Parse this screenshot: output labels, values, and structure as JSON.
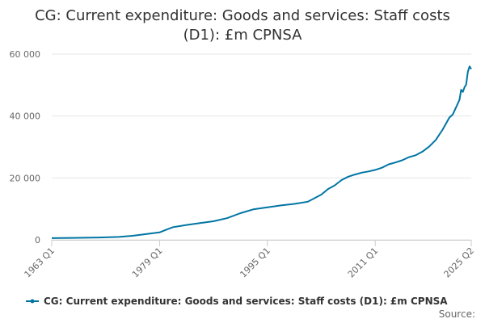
{
  "title_line1": "CG: Current expenditure: Goods and services: Staff costs",
  "title_line2": "(D1): £m CPNSA",
  "source_label": "Source:",
  "colors": {
    "series": "#0075a3",
    "grid": "#e6e6e6",
    "axis": "#cccccc"
  },
  "chart_data": {
    "type": "line",
    "title": "CG: Current expenditure: Goods and services: Staff costs (D1): £m CPNSA",
    "xlabel": "",
    "ylabel": "",
    "ylim": [
      0,
      60000
    ],
    "y_ticks": [
      0,
      20000,
      40000,
      60000
    ],
    "y_tick_labels": [
      "0",
      "20 000",
      "40 000",
      "60 000"
    ],
    "x_range": [
      "1963 Q1",
      "2025 Q2"
    ],
    "x_ticks": [
      "1963 Q1",
      "1979 Q1",
      "1995 Q1",
      "2011 Q1",
      "2025 Q2"
    ],
    "grid": true,
    "legend_position": "bottom",
    "series": [
      {
        "name": "CG: Current expenditure: Goods and services: Staff costs (D1): £m CPNSA",
        "color": "#0075a3",
        "points": [
          [
            "1963 Q1",
            550
          ],
          [
            "1966 Q1",
            620
          ],
          [
            "1970 Q1",
            760
          ],
          [
            "1973 Q1",
            950
          ],
          [
            "1975 Q1",
            1300
          ],
          [
            "1977 Q1",
            1850
          ],
          [
            "1979 Q1",
            2400
          ],
          [
            "1980 Q1",
            3300
          ],
          [
            "1981 Q1",
            4100
          ],
          [
            "1983 Q1",
            4800
          ],
          [
            "1985 Q1",
            5400
          ],
          [
            "1987 Q1",
            6000
          ],
          [
            "1989 Q1",
            7000
          ],
          [
            "1991 Q1",
            8600
          ],
          [
            "1993 Q1",
            9900
          ],
          [
            "1995 Q1",
            10500
          ],
          [
            "1997 Q1",
            11100
          ],
          [
            "1999 Q1",
            11600
          ],
          [
            "2001 Q1",
            12300
          ],
          [
            "2003 Q1",
            14600
          ],
          [
            "2004 Q1",
            16400
          ],
          [
            "2005 Q1",
            17600
          ],
          [
            "2006 Q1",
            19300
          ],
          [
            "2007 Q1",
            20400
          ],
          [
            "2008 Q1",
            21100
          ],
          [
            "2009 Q1",
            21700
          ],
          [
            "2010 Q1",
            22100
          ],
          [
            "2011 Q1",
            22600
          ],
          [
            "2012 Q1",
            23300
          ],
          [
            "2013 Q1",
            24400
          ],
          [
            "2014 Q1",
            25000
          ],
          [
            "2015 Q1",
            25700
          ],
          [
            "2016 Q1",
            26700
          ],
          [
            "2017 Q1",
            27300
          ],
          [
            "2018 Q1",
            28500
          ],
          [
            "2019 Q1",
            30100
          ],
          [
            "2020 Q1",
            32300
          ],
          [
            "2021 Q1",
            35600
          ],
          [
            "2022 Q1",
            39500
          ],
          [
            "2022 Q3",
            40500
          ],
          [
            "2023 Q1",
            42800
          ],
          [
            "2023 Q3",
            45200
          ],
          [
            "2023 Q4",
            48500
          ],
          [
            "2024 Q1",
            47800
          ],
          [
            "2024 Q2",
            49300
          ],
          [
            "2024 Q3",
            50200
          ],
          [
            "2024 Q4",
            54300
          ],
          [
            "2025 Q1",
            56000
          ],
          [
            "2025 Q2",
            55200
          ]
        ]
      }
    ]
  }
}
